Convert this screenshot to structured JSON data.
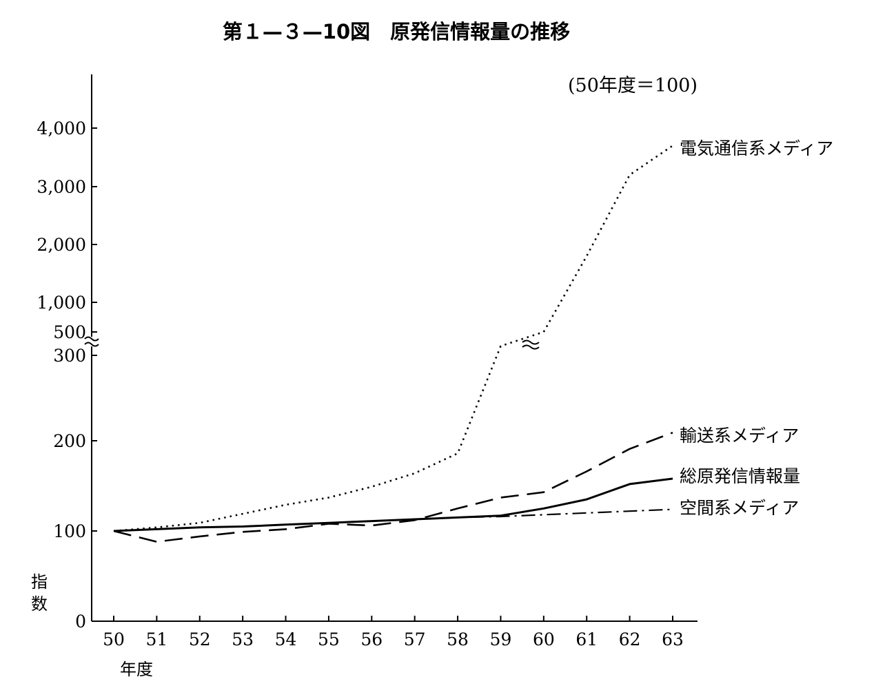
{
  "title": "第１—３—10図　原発信情報量の推移",
  "unit_note": "(50年度＝100)",
  "chart_data": {
    "type": "line",
    "title": "第１—３—10図　原発信情報量の推移",
    "xlabel": "年度",
    "ylabel": "指数",
    "x": [
      "50",
      "51",
      "52",
      "53",
      "54",
      "55",
      "56",
      "57",
      "58",
      "59",
      "60",
      "61",
      "62",
      "63"
    ],
    "y_ticks_lower": [
      "0",
      "100",
      "200",
      "300"
    ],
    "y_ticks_upper": [
      "500",
      "1,000",
      "2,000",
      "3,000",
      "4,000"
    ],
    "axis_break": "between 300 and 500 (broken y-axis)",
    "ylim": [
      0,
      4000
    ],
    "series": [
      {
        "name": "電気通信系メディア",
        "style": "dotted",
        "values": [
          100,
          104,
          109,
          119,
          129,
          137,
          149,
          164,
          186,
          305,
          500,
          1800,
          3200,
          3700
        ]
      },
      {
        "name": "輸送系メディア",
        "style": "dashed",
        "values": [
          100,
          88,
          94,
          99,
          102,
          108,
          106,
          112,
          125,
          137,
          143,
          166,
          191,
          209
        ]
      },
      {
        "name": "総原発信情報量",
        "style": "solid",
        "values": [
          100,
          102,
          104,
          105,
          107,
          109,
          111,
          113,
          115,
          117,
          125,
          135,
          152,
          158
        ]
      },
      {
        "name": "空間系メディア",
        "style": "dash-dot",
        "values": [
          100,
          102,
          104,
          105,
          107,
          109,
          111,
          113,
          115,
          116,
          118,
          120,
          122,
          124
        ]
      }
    ],
    "grid": false,
    "legend": "inline labels at right end of each line"
  }
}
